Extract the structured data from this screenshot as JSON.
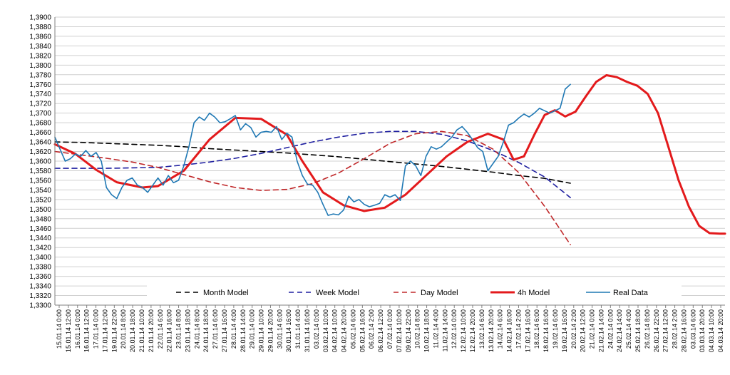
{
  "chart_data": {
    "type": "line",
    "title": "",
    "xlabel": "",
    "ylabel": "",
    "ylim": [
      1.33,
      1.39
    ],
    "y_step": 0.002,
    "y_tick_format": "comma4",
    "grid": true,
    "legend_position": "bottom-inside",
    "x_labels": [
      "15.01.14 0:00",
      "15.01.14 12:00",
      "16.01.14 0:00",
      "16.01.14 12:00",
      "17.01.14 0:00",
      "17.01.14 12:00",
      "19.01.14 22:00",
      "20.01.14 8:00",
      "20.01.14 18:00",
      "21.01.14 10:00",
      "21.01.14 20:00",
      "22.01.14 6:00",
      "22.01.14 16:00",
      "23.01.14 8:00",
      "23.01.14 18:00",
      "24.01.14 8:00",
      "24.01.14 18:00",
      "27.01.14 6:00",
      "27.01.14 16:00",
      "28.01.14 4:00",
      "28.01.14 14:00",
      "29.01.14 0:00",
      "29.01.14 10:00",
      "29.01.14 20:00",
      "30.01.14 6:00",
      "30.01.14 16:00",
      "31.01.14 4:00",
      "31.01.14 16:00",
      "03.02.14 0:00",
      "03.02.14 10:00",
      "04.02.14 10:00",
      "04.02.14 20:00",
      "05.02.14 6:00",
      "05.02.14 16:00",
      "06.02.14 2:00",
      "06.02.14 12:00",
      "07.02.14 0:00",
      "07.02.14 10:00",
      "09.02.14 22:00",
      "10.02.14 8:00",
      "10.02.14 18:00",
      "11.02.14 4:00",
      "11.02.14 14:00",
      "12.02.14 0:00",
      "12.02.14 10:00",
      "12.02.14 20:00",
      "13.02.14 6:00",
      "13.02.14 20:00",
      "14.02.14 6:00",
      "14.02.14 16:00",
      "17.02.14 2:00",
      "17.02.14 16:00",
      "18.02.14 6:00",
      "18.02.14 16:00",
      "19.02.14 6:00",
      "19.02.14 16:00",
      "20.02.14 2:00",
      "20.02.14 12:00",
      "21.02.14 0:00",
      "21.02.14 14:00",
      "24.02.14 0:00",
      "24.02.14 14:00",
      "25.02.14 4:00",
      "25.02.14 18:00",
      "26.02.14 8:00",
      "26.02.14 22:00",
      "27.02.14 12:00",
      "28.02.14 2:00",
      "28.02.14 16:00",
      "03.03.14 6:00",
      "03.03.14 20:00",
      "04.03.14 10:00",
      "04.03.14 20:00"
    ],
    "series": [
      {
        "name": "Month Model",
        "color": "#000000",
        "dash": "dash",
        "points": [
          [
            0,
            1.364
          ],
          [
            5,
            1.3639
          ],
          [
            10,
            1.3637
          ],
          [
            15,
            1.3635
          ],
          [
            20,
            1.3633
          ],
          [
            25,
            1.363
          ],
          [
            30,
            1.3626
          ],
          [
            35,
            1.3623
          ],
          [
            40,
            1.362
          ],
          [
            45,
            1.3617
          ],
          [
            50,
            1.3613
          ],
          [
            55,
            1.3609
          ],
          [
            60,
            1.3604
          ],
          [
            65,
            1.3599
          ],
          [
            70,
            1.3594
          ],
          [
            75,
            1.3589
          ],
          [
            80,
            1.3583
          ],
          [
            85,
            1.3577
          ],
          [
            90,
            1.357
          ],
          [
            95,
            1.3564
          ],
          [
            100,
            1.3554
          ]
        ]
      },
      {
        "name": "Week Model",
        "color": "#1f1fa0",
        "dash": "dash",
        "points": [
          [
            0,
            1.3585
          ],
          [
            10,
            1.3585
          ],
          [
            20,
            1.3587
          ],
          [
            25,
            1.3592
          ],
          [
            30,
            1.3598
          ],
          [
            35,
            1.3606
          ],
          [
            40,
            1.3616
          ],
          [
            45,
            1.3628
          ],
          [
            50,
            1.364
          ],
          [
            55,
            1.365
          ],
          [
            60,
            1.3658
          ],
          [
            65,
            1.3662
          ],
          [
            70,
            1.3662
          ],
          [
            75,
            1.3656
          ],
          [
            80,
            1.3642
          ],
          [
            85,
            1.3622
          ],
          [
            90,
            1.3597
          ],
          [
            95,
            1.3567
          ],
          [
            100,
            1.3524
          ]
        ]
      },
      {
        "name": "Day Model",
        "color": "#c0282a",
        "dash": "dash",
        "points": [
          [
            0,
            1.362
          ],
          [
            10,
            1.3606
          ],
          [
            15,
            1.3598
          ],
          [
            20,
            1.3587
          ],
          [
            25,
            1.3572
          ],
          [
            30,
            1.3557
          ],
          [
            35,
            1.3545
          ],
          [
            40,
            1.3539
          ],
          [
            45,
            1.3541
          ],
          [
            50,
            1.3553
          ],
          [
            55,
            1.3575
          ],
          [
            60,
            1.3605
          ],
          [
            65,
            1.3637
          ],
          [
            70,
            1.3657
          ],
          [
            75,
            1.3662
          ],
          [
            80,
            1.3653
          ],
          [
            85,
            1.3625
          ],
          [
            90,
            1.3576
          ],
          [
            95,
            1.3506
          ],
          [
            100,
            1.3426
          ]
        ]
      },
      {
        "name": "4h Model",
        "color": "#e31a1c",
        "dash": "solid",
        "points": [
          [
            0,
            1.3635
          ],
          [
            4,
            1.3615
          ],
          [
            8,
            1.3582
          ],
          [
            12,
            1.3556
          ],
          [
            17,
            1.3545
          ],
          [
            20,
            1.3548
          ],
          [
            25,
            1.358
          ],
          [
            30,
            1.3645
          ],
          [
            35,
            1.369
          ],
          [
            40,
            1.3688
          ],
          [
            45,
            1.3655
          ],
          [
            48,
            1.36
          ],
          [
            52,
            1.3535
          ],
          [
            56,
            1.3508
          ],
          [
            60,
            1.3496
          ],
          [
            64,
            1.3503
          ],
          [
            68,
            1.353
          ],
          [
            72,
            1.357
          ],
          [
            76,
            1.361
          ],
          [
            80,
            1.364
          ],
          [
            84,
            1.3657
          ],
          [
            87,
            1.3645
          ],
          [
            89,
            1.3603
          ],
          [
            91,
            1.361
          ],
          [
            93,
            1.3655
          ],
          [
            95,
            1.3696
          ],
          [
            97,
            1.3706
          ],
          [
            99,
            1.3693
          ],
          [
            101,
            1.3703
          ],
          [
            103,
            1.3735
          ],
          [
            105,
            1.3765
          ],
          [
            107,
            1.3779
          ],
          [
            109,
            1.3775
          ],
          [
            111,
            1.3765
          ],
          [
            113,
            1.3757
          ],
          [
            115,
            1.374
          ],
          [
            117,
            1.37
          ],
          [
            119,
            1.363
          ],
          [
            121,
            1.356
          ],
          [
            123,
            1.3505
          ],
          [
            125,
            1.3465
          ],
          [
            127,
            1.345
          ],
          [
            129,
            1.3449
          ],
          [
            130,
            1.3449
          ]
        ]
      },
      {
        "name": "Real Data",
        "color": "#1f78b4",
        "dash": "solid",
        "points": [
          [
            0,
            1.365
          ],
          [
            1,
            1.3625
          ],
          [
            2,
            1.36
          ],
          [
            3,
            1.3605
          ],
          [
            4,
            1.3615
          ],
          [
            5,
            1.361
          ],
          [
            6,
            1.3622
          ],
          [
            7,
            1.361
          ],
          [
            8,
            1.3618
          ],
          [
            9,
            1.36
          ],
          [
            10,
            1.3545
          ],
          [
            11,
            1.353
          ],
          [
            12,
            1.3522
          ],
          [
            13,
            1.3545
          ],
          [
            14,
            1.356
          ],
          [
            15,
            1.3565
          ],
          [
            16,
            1.355
          ],
          [
            17,
            1.3545
          ],
          [
            18,
            1.3535
          ],
          [
            19,
            1.355
          ],
          [
            20,
            1.3565
          ],
          [
            21,
            1.355
          ],
          [
            22,
            1.357
          ],
          [
            23,
            1.3555
          ],
          [
            24,
            1.356
          ],
          [
            25,
            1.359
          ],
          [
            26,
            1.363
          ],
          [
            27,
            1.368
          ],
          [
            28,
            1.3692
          ],
          [
            29,
            1.3685
          ],
          [
            30,
            1.37
          ],
          [
            31,
            1.3692
          ],
          [
            32,
            1.368
          ],
          [
            33,
            1.3682
          ],
          [
            34,
            1.3688
          ],
          [
            35,
            1.3695
          ],
          [
            36,
            1.3665
          ],
          [
            37,
            1.3678
          ],
          [
            38,
            1.367
          ],
          [
            39,
            1.365
          ],
          [
            40,
            1.366
          ],
          [
            41,
            1.3662
          ],
          [
            42,
            1.366
          ],
          [
            43,
            1.3672
          ],
          [
            44,
            1.3645
          ],
          [
            45,
            1.3658
          ],
          [
            46,
            1.365
          ],
          [
            47,
            1.36
          ],
          [
            48,
            1.357
          ],
          [
            49,
            1.3552
          ],
          [
            50,
            1.355
          ],
          [
            51,
            1.3535
          ],
          [
            52,
            1.351
          ],
          [
            53,
            1.3487
          ],
          [
            54,
            1.349
          ],
          [
            55,
            1.3488
          ],
          [
            56,
            1.3498
          ],
          [
            57,
            1.3527
          ],
          [
            58,
            1.3515
          ],
          [
            59,
            1.352
          ],
          [
            60,
            1.351
          ],
          [
            61,
            1.3505
          ],
          [
            62,
            1.3508
          ],
          [
            63,
            1.3512
          ],
          [
            64,
            1.353
          ],
          [
            65,
            1.3525
          ],
          [
            66,
            1.353
          ],
          [
            67,
            1.3518
          ],
          [
            68,
            1.359
          ],
          [
            69,
            1.36
          ],
          [
            70,
            1.359
          ],
          [
            71,
            1.357
          ],
          [
            72,
            1.361
          ],
          [
            73,
            1.363
          ],
          [
            74,
            1.3625
          ],
          [
            75,
            1.363
          ],
          [
            76,
            1.364
          ],
          [
            77,
            1.365
          ],
          [
            78,
            1.3665
          ],
          [
            79,
            1.3672
          ],
          [
            80,
            1.366
          ],
          [
            81,
            1.3645
          ],
          [
            82,
            1.3628
          ],
          [
            83,
            1.362
          ],
          [
            84,
            1.358
          ],
          [
            85,
            1.3595
          ],
          [
            86,
            1.361
          ],
          [
            87,
            1.364
          ],
          [
            88,
            1.3675
          ],
          [
            89,
            1.368
          ],
          [
            90,
            1.369
          ],
          [
            91,
            1.3698
          ],
          [
            92,
            1.3692
          ],
          [
            93,
            1.37
          ],
          [
            94,
            1.371
          ],
          [
            95,
            1.3705
          ],
          [
            96,
            1.37
          ],
          [
            97,
            1.3705
          ],
          [
            98,
            1.371
          ],
          [
            99,
            1.375
          ],
          [
            100,
            1.376
          ]
        ]
      }
    ]
  }
}
